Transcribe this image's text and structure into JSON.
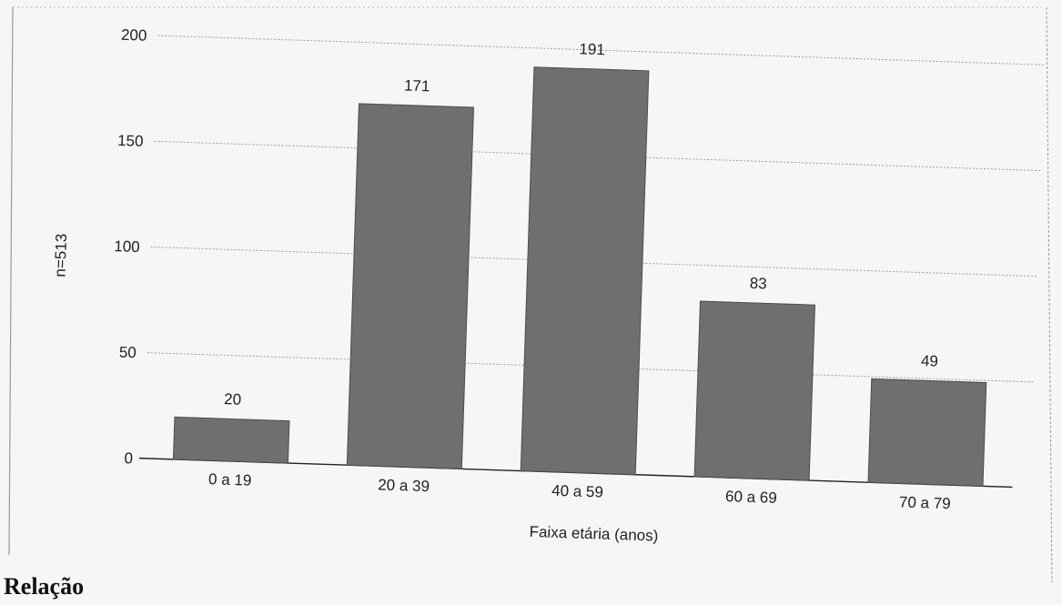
{
  "caption": "Relação",
  "chart_data": {
    "type": "bar",
    "categories": [
      "0  a 19",
      "20 a 39",
      "40 a 59",
      "60 a 69",
      "70 a 79"
    ],
    "values": [
      20,
      171,
      191,
      83,
      49
    ],
    "data_labels": [
      "20",
      "171",
      "191",
      "83",
      "49"
    ],
    "title": "",
    "xlabel": "Faixa etária (anos)",
    "ylabel": "n=513",
    "ylim": [
      0,
      200
    ],
    "yticks": [
      0,
      50,
      100,
      150,
      200
    ],
    "grid": true,
    "legend": "none",
    "bar_color": "#6f6f6f"
  }
}
